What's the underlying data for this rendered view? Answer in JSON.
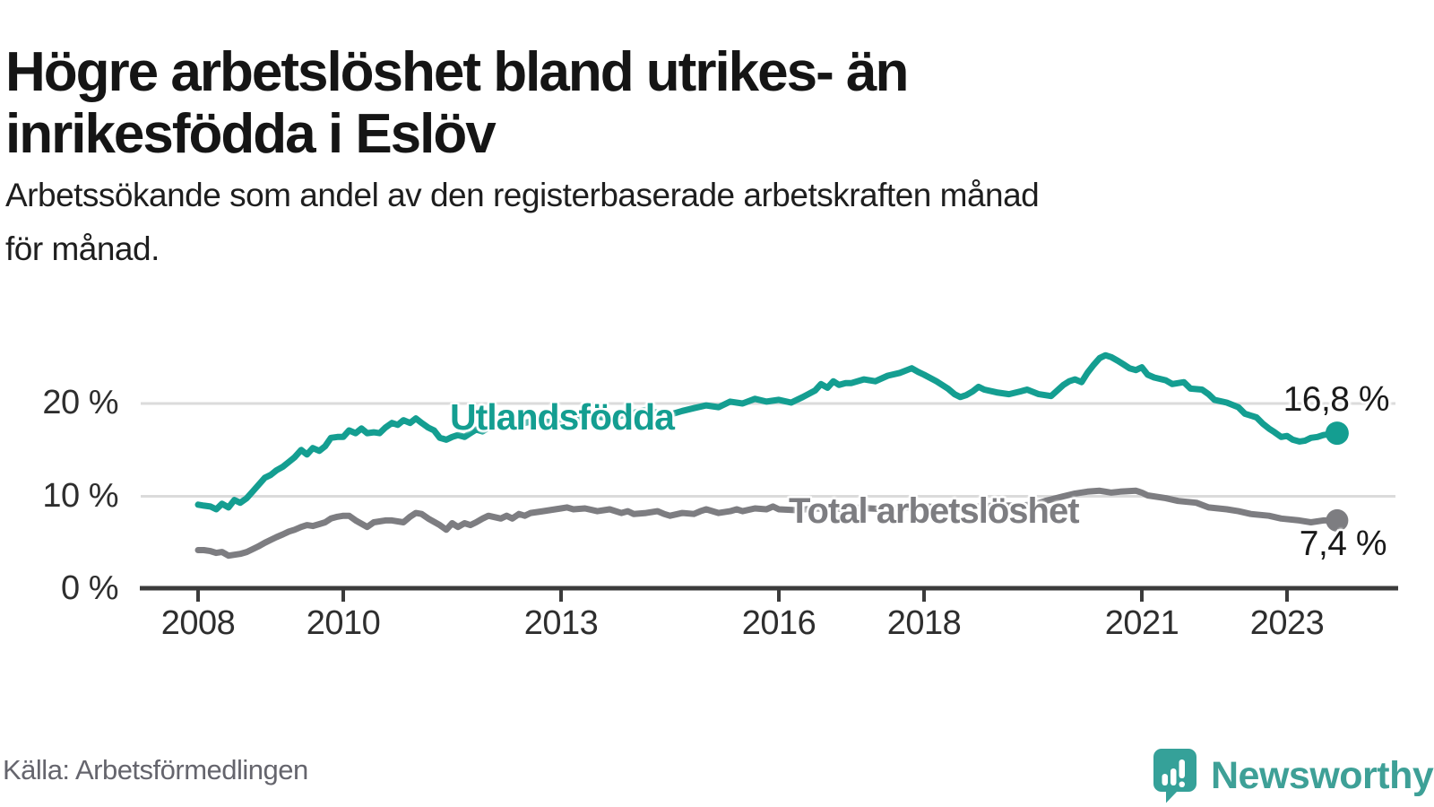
{
  "title": "Högre arbetslöshet bland utrikes- än inrikesfödda i Eslöv",
  "subtitle_lines": [
    "Arbetssökande som andel av den registerbaserade arbetskraften månad",
    "för månad."
  ],
  "source": "Källa: Arbetsförmedlingen",
  "branding": {
    "name": "Newsworthy",
    "icon": "newsworthy-chart-bubble-icon",
    "icon_color": "#35a199",
    "text_color": "#3ea097"
  },
  "colors": {
    "foreign_born_line": "#149e91",
    "total_line": "#7d7d81",
    "axis": "#3b3b3b",
    "grid": "#dbdbdb",
    "end_label_text": "#1a1a1a"
  },
  "chart_data": {
    "type": "line",
    "title": "Högre arbetslöshet bland utrikes- än inrikesfödda i Eslöv",
    "subtitle": "Arbetssökande som andel av den registerbaserade arbetskraften månad för månad.",
    "xlabel": "",
    "ylabel": "",
    "unit": "%",
    "xlim": [
      2007.2,
      2024.5
    ],
    "ylim": [
      0,
      27
    ],
    "grid": "horizontal",
    "legend_position": "inline-labels",
    "x_ticks": [
      {
        "value": 2008,
        "label": "2008"
      },
      {
        "value": 2010,
        "label": "2010"
      },
      {
        "value": 2013,
        "label": "2013"
      },
      {
        "value": 2016,
        "label": "2016"
      },
      {
        "value": 2018,
        "label": "2018"
      },
      {
        "value": 2021,
        "label": "2021"
      },
      {
        "value": 2023,
        "label": "2023"
      }
    ],
    "y_ticks": [
      {
        "value": 0,
        "label": "0 %"
      },
      {
        "value": 10,
        "label": "10 %"
      },
      {
        "value": 20,
        "label": "20 %"
      }
    ],
    "series": [
      {
        "name": "Utlandsfödda",
        "color": "#149e91",
        "end_label": "16,8 %",
        "end_value": 16.8,
        "points": [
          [
            2008.0,
            9.1
          ],
          [
            2008.08,
            9.0
          ],
          [
            2008.17,
            8.9
          ],
          [
            2008.25,
            8.6
          ],
          [
            2008.33,
            9.2
          ],
          [
            2008.42,
            8.8
          ],
          [
            2008.5,
            9.6
          ],
          [
            2008.58,
            9.3
          ],
          [
            2008.67,
            9.8
          ],
          [
            2008.75,
            10.5
          ],
          [
            2008.83,
            11.2
          ],
          [
            2008.92,
            12.0
          ],
          [
            2009.0,
            12.3
          ],
          [
            2009.08,
            12.8
          ],
          [
            2009.17,
            13.2
          ],
          [
            2009.25,
            13.7
          ],
          [
            2009.33,
            14.2
          ],
          [
            2009.42,
            15.0
          ],
          [
            2009.5,
            14.5
          ],
          [
            2009.58,
            15.2
          ],
          [
            2009.67,
            14.9
          ],
          [
            2009.75,
            15.4
          ],
          [
            2009.83,
            16.3
          ],
          [
            2009.92,
            16.4
          ],
          [
            2010.0,
            16.4
          ],
          [
            2010.08,
            17.1
          ],
          [
            2010.17,
            16.8
          ],
          [
            2010.25,
            17.3
          ],
          [
            2010.33,
            16.8
          ],
          [
            2010.42,
            16.9
          ],
          [
            2010.5,
            16.8
          ],
          [
            2010.58,
            17.4
          ],
          [
            2010.67,
            17.9
          ],
          [
            2010.75,
            17.7
          ],
          [
            2010.83,
            18.2
          ],
          [
            2010.92,
            17.9
          ],
          [
            2011.0,
            18.4
          ],
          [
            2011.08,
            17.9
          ],
          [
            2011.17,
            17.4
          ],
          [
            2011.25,
            17.1
          ],
          [
            2011.33,
            16.3
          ],
          [
            2011.42,
            16.1
          ],
          [
            2011.5,
            16.4
          ],
          [
            2011.58,
            16.6
          ],
          [
            2011.67,
            16.4
          ],
          [
            2011.75,
            16.8
          ],
          [
            2011.83,
            17.2
          ],
          [
            2011.92,
            17.0
          ],
          [
            2012.0,
            17.4
          ],
          [
            2012.17,
            17.8
          ],
          [
            2012.33,
            17.5
          ],
          [
            2012.5,
            17.9
          ],
          [
            2012.67,
            18.2
          ],
          [
            2012.83,
            18.0
          ],
          [
            2013.0,
            18.3
          ],
          [
            2013.17,
            18.1
          ],
          [
            2013.33,
            18.4
          ],
          [
            2013.5,
            18.6
          ],
          [
            2013.67,
            18.4
          ],
          [
            2013.83,
            18.7
          ],
          [
            2014.0,
            19.0
          ],
          [
            2014.17,
            19.3
          ],
          [
            2014.33,
            19.0
          ],
          [
            2014.5,
            18.8
          ],
          [
            2014.67,
            19.2
          ],
          [
            2014.83,
            19.5
          ],
          [
            2015.0,
            19.8
          ],
          [
            2015.17,
            19.6
          ],
          [
            2015.33,
            20.2
          ],
          [
            2015.5,
            20.0
          ],
          [
            2015.67,
            20.5
          ],
          [
            2015.83,
            20.2
          ],
          [
            2016.0,
            20.4
          ],
          [
            2016.17,
            20.1
          ],
          [
            2016.33,
            20.7
          ],
          [
            2016.5,
            21.4
          ],
          [
            2016.58,
            22.1
          ],
          [
            2016.67,
            21.7
          ],
          [
            2016.75,
            22.4
          ],
          [
            2016.83,
            22.0
          ],
          [
            2016.92,
            22.2
          ],
          [
            2017.0,
            22.2
          ],
          [
            2017.17,
            22.6
          ],
          [
            2017.33,
            22.4
          ],
          [
            2017.5,
            23.0
          ],
          [
            2017.67,
            23.3
          ],
          [
            2017.83,
            23.8
          ],
          [
            2017.92,
            23.4
          ],
          [
            2018.0,
            23.1
          ],
          [
            2018.17,
            22.4
          ],
          [
            2018.33,
            21.6
          ],
          [
            2018.42,
            21.0
          ],
          [
            2018.5,
            20.7
          ],
          [
            2018.58,
            20.9
          ],
          [
            2018.67,
            21.3
          ],
          [
            2018.75,
            21.8
          ],
          [
            2018.83,
            21.5
          ],
          [
            2019.0,
            21.2
          ],
          [
            2019.17,
            21.0
          ],
          [
            2019.33,
            21.3
          ],
          [
            2019.42,
            21.5
          ],
          [
            2019.58,
            21.0
          ],
          [
            2019.75,
            20.8
          ],
          [
            2019.92,
            22.0
          ],
          [
            2020.0,
            22.4
          ],
          [
            2020.08,
            22.6
          ],
          [
            2020.17,
            22.3
          ],
          [
            2020.25,
            23.3
          ],
          [
            2020.33,
            24.1
          ],
          [
            2020.42,
            24.9
          ],
          [
            2020.5,
            25.2
          ],
          [
            2020.58,
            25.0
          ],
          [
            2020.67,
            24.6
          ],
          [
            2020.75,
            24.2
          ],
          [
            2020.83,
            23.8
          ],
          [
            2020.92,
            23.6
          ],
          [
            2021.0,
            23.9
          ],
          [
            2021.08,
            23.1
          ],
          [
            2021.17,
            22.8
          ],
          [
            2021.33,
            22.5
          ],
          [
            2021.42,
            22.1
          ],
          [
            2021.58,
            22.3
          ],
          [
            2021.67,
            21.6
          ],
          [
            2021.83,
            21.5
          ],
          [
            2021.92,
            21.0
          ],
          [
            2022.0,
            20.4
          ],
          [
            2022.17,
            20.1
          ],
          [
            2022.33,
            19.6
          ],
          [
            2022.42,
            18.9
          ],
          [
            2022.58,
            18.5
          ],
          [
            2022.67,
            17.8
          ],
          [
            2022.75,
            17.3
          ],
          [
            2022.83,
            16.9
          ],
          [
            2022.92,
            16.4
          ],
          [
            2023.0,
            16.5
          ],
          [
            2023.08,
            16.1
          ],
          [
            2023.17,
            15.9
          ],
          [
            2023.25,
            16.0
          ],
          [
            2023.33,
            16.3
          ],
          [
            2023.42,
            16.4
          ],
          [
            2023.5,
            16.6
          ],
          [
            2023.58,
            16.7
          ],
          [
            2023.69,
            16.8
          ]
        ]
      },
      {
        "name": "Total arbetslöshet",
        "color": "#7d7d81",
        "end_label": "7,4 %",
        "end_value": 7.4,
        "points": [
          [
            2008.0,
            4.2
          ],
          [
            2008.08,
            4.2
          ],
          [
            2008.17,
            4.1
          ],
          [
            2008.25,
            3.9
          ],
          [
            2008.33,
            4.0
          ],
          [
            2008.42,
            3.6
          ],
          [
            2008.5,
            3.7
          ],
          [
            2008.58,
            3.8
          ],
          [
            2008.67,
            4.0
          ],
          [
            2008.75,
            4.3
          ],
          [
            2008.83,
            4.6
          ],
          [
            2008.92,
            5.0
          ],
          [
            2009.0,
            5.3
          ],
          [
            2009.08,
            5.6
          ],
          [
            2009.17,
            5.9
          ],
          [
            2009.25,
            6.2
          ],
          [
            2009.33,
            6.4
          ],
          [
            2009.42,
            6.7
          ],
          [
            2009.5,
            6.9
          ],
          [
            2009.58,
            6.8
          ],
          [
            2009.67,
            7.0
          ],
          [
            2009.75,
            7.2
          ],
          [
            2009.83,
            7.6
          ],
          [
            2009.92,
            7.8
          ],
          [
            2010.0,
            7.9
          ],
          [
            2010.08,
            7.9
          ],
          [
            2010.17,
            7.4
          ],
          [
            2010.33,
            6.7
          ],
          [
            2010.42,
            7.2
          ],
          [
            2010.58,
            7.4
          ],
          [
            2010.67,
            7.4
          ],
          [
            2010.83,
            7.2
          ],
          [
            2010.92,
            7.8
          ],
          [
            2011.0,
            8.2
          ],
          [
            2011.08,
            8.1
          ],
          [
            2011.17,
            7.6
          ],
          [
            2011.33,
            6.9
          ],
          [
            2011.42,
            6.4
          ],
          [
            2011.5,
            7.1
          ],
          [
            2011.58,
            6.7
          ],
          [
            2011.67,
            7.1
          ],
          [
            2011.75,
            6.9
          ],
          [
            2011.83,
            7.2
          ],
          [
            2011.92,
            7.6
          ],
          [
            2012.0,
            7.9
          ],
          [
            2012.17,
            7.6
          ],
          [
            2012.25,
            7.9
          ],
          [
            2012.33,
            7.6
          ],
          [
            2012.42,
            8.1
          ],
          [
            2012.5,
            7.9
          ],
          [
            2012.58,
            8.2
          ],
          [
            2012.75,
            8.4
          ],
          [
            2012.92,
            8.6
          ],
          [
            2013.0,
            8.7
          ],
          [
            2013.08,
            8.8
          ],
          [
            2013.17,
            8.6
          ],
          [
            2013.33,
            8.7
          ],
          [
            2013.5,
            8.4
          ],
          [
            2013.67,
            8.6
          ],
          [
            2013.83,
            8.2
          ],
          [
            2013.92,
            8.4
          ],
          [
            2014.0,
            8.1
          ],
          [
            2014.17,
            8.2
          ],
          [
            2014.33,
            8.4
          ],
          [
            2014.42,
            8.1
          ],
          [
            2014.5,
            7.9
          ],
          [
            2014.67,
            8.2
          ],
          [
            2014.83,
            8.1
          ],
          [
            2014.92,
            8.4
          ],
          [
            2015.0,
            8.6
          ],
          [
            2015.17,
            8.2
          ],
          [
            2015.33,
            8.4
          ],
          [
            2015.42,
            8.6
          ],
          [
            2015.5,
            8.4
          ],
          [
            2015.67,
            8.7
          ],
          [
            2015.83,
            8.6
          ],
          [
            2015.92,
            8.9
          ],
          [
            2016.0,
            8.6
          ],
          [
            2016.25,
            8.5
          ],
          [
            2016.5,
            8.7
          ],
          [
            2016.75,
            8.6
          ],
          [
            2017.0,
            8.8
          ],
          [
            2017.25,
            8.7
          ],
          [
            2017.5,
            8.6
          ],
          [
            2017.75,
            8.8
          ],
          [
            2018.0,
            8.9
          ],
          [
            2018.25,
            8.8
          ],
          [
            2018.5,
            8.8
          ],
          [
            2018.75,
            8.9
          ],
          [
            2019.0,
            9.0
          ],
          [
            2019.17,
            9.0
          ],
          [
            2019.33,
            9.0
          ],
          [
            2019.5,
            9.1
          ],
          [
            2019.67,
            9.5
          ],
          [
            2019.92,
            10.0
          ],
          [
            2020.08,
            10.3
          ],
          [
            2020.25,
            10.5
          ],
          [
            2020.42,
            10.6
          ],
          [
            2020.5,
            10.5
          ],
          [
            2020.58,
            10.4
          ],
          [
            2020.7,
            10.5
          ],
          [
            2020.92,
            10.6
          ],
          [
            2021.0,
            10.4
          ],
          [
            2021.08,
            10.1
          ],
          [
            2021.33,
            9.8
          ],
          [
            2021.5,
            9.5
          ],
          [
            2021.75,
            9.3
          ],
          [
            2021.92,
            8.8
          ],
          [
            2022.17,
            8.6
          ],
          [
            2022.33,
            8.4
          ],
          [
            2022.5,
            8.1
          ],
          [
            2022.75,
            7.9
          ],
          [
            2022.92,
            7.6
          ],
          [
            2023.17,
            7.4
          ],
          [
            2023.33,
            7.2
          ],
          [
            2023.5,
            7.4
          ],
          [
            2023.69,
            7.4
          ]
        ]
      }
    ]
  }
}
